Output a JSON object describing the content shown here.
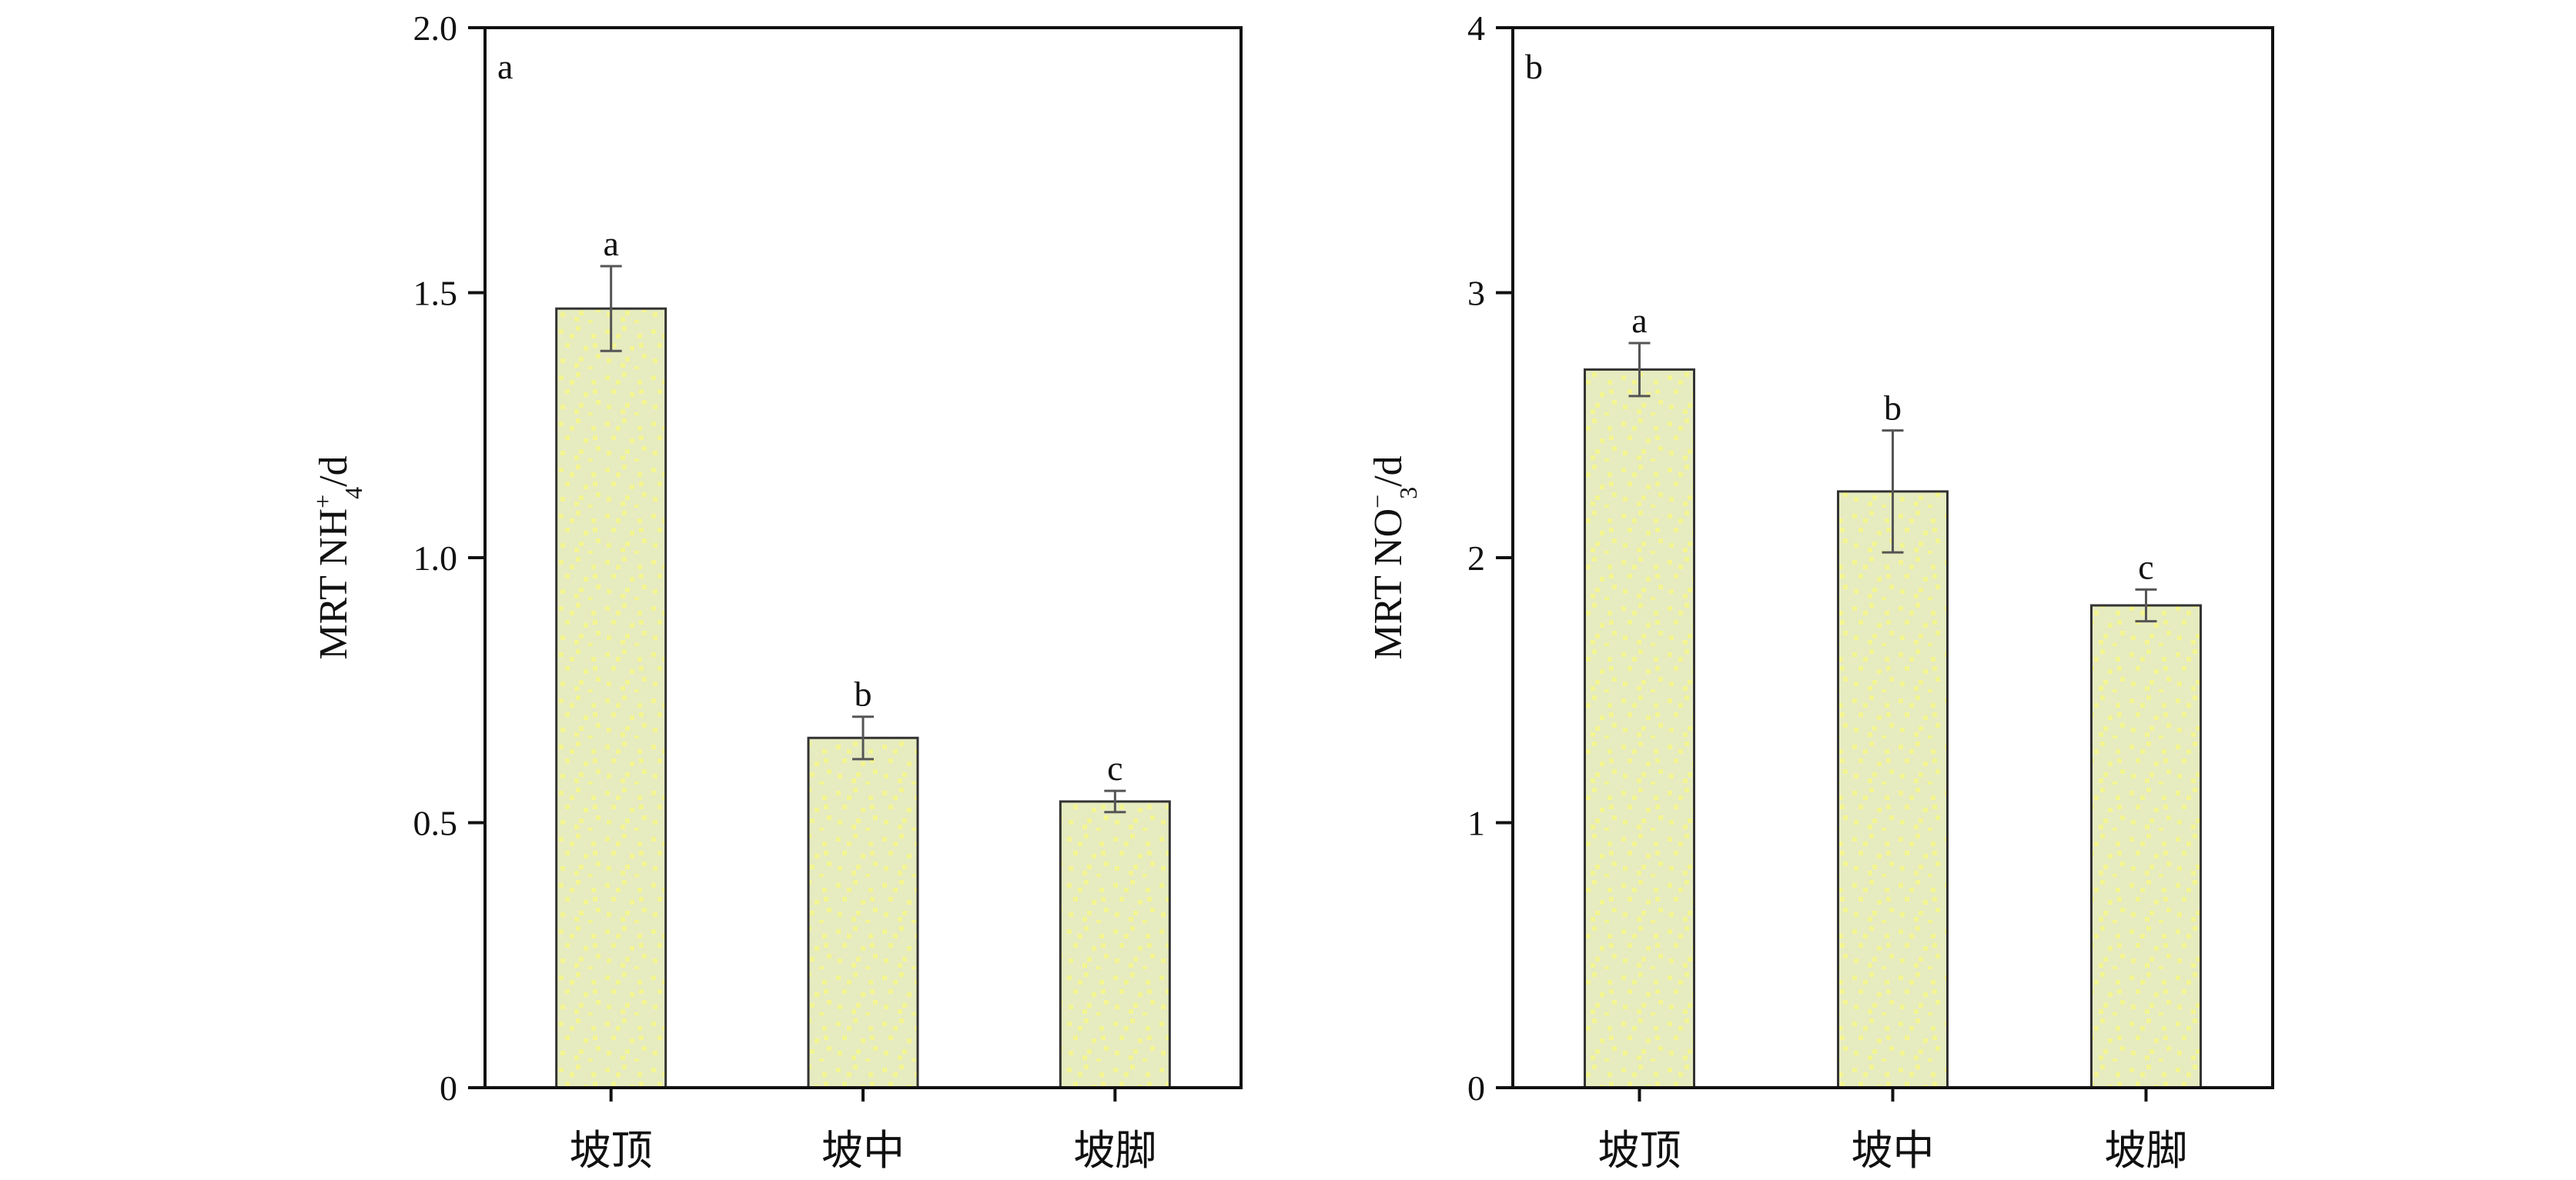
{
  "colors": {
    "bar_fill": "#e6ebc0",
    "bar_speckle": "#f3f590",
    "bar_stroke": "#333333",
    "axis": "#111111",
    "error_bar": "#555555"
  },
  "chart_data": [
    {
      "type": "bar",
      "panel_label": "a",
      "categories": [
        "坡顶",
        "坡中",
        "坡脚"
      ],
      "values": [
        1.47,
        0.66,
        0.54
      ],
      "errors": [
        0.08,
        0.04,
        0.02
      ],
      "significance": [
        "a",
        "b",
        "c"
      ],
      "title": "",
      "xlabel": "",
      "ylabel": {
        "main": "MRT NH",
        "sup": "+",
        "sub": "4",
        "tail": "/d"
      },
      "ylim": [
        0,
        2.0
      ],
      "yticks": [
        0,
        0.5,
        1.0,
        1.5,
        2.0
      ],
      "ytick_labels": [
        "0",
        "0.5",
        "1.0",
        "1.5",
        "2.0"
      ],
      "grid": false,
      "legend": "none"
    },
    {
      "type": "bar",
      "panel_label": "b",
      "categories": [
        "坡顶",
        "坡中",
        "坡脚"
      ],
      "values": [
        2.71,
        2.25,
        1.82
      ],
      "errors": [
        0.1,
        0.23,
        0.06
      ],
      "significance": [
        "a",
        "b",
        "c"
      ],
      "title": "",
      "xlabel": "",
      "ylabel": {
        "main": "MRT NO",
        "sup": "−",
        "sub": "3",
        "tail": "/d"
      },
      "ylim": [
        0,
        4
      ],
      "yticks": [
        0,
        1,
        2,
        3,
        4
      ],
      "ytick_labels": [
        "0",
        "1",
        "2",
        "3",
        "4"
      ],
      "grid": false,
      "legend": "none"
    }
  ]
}
